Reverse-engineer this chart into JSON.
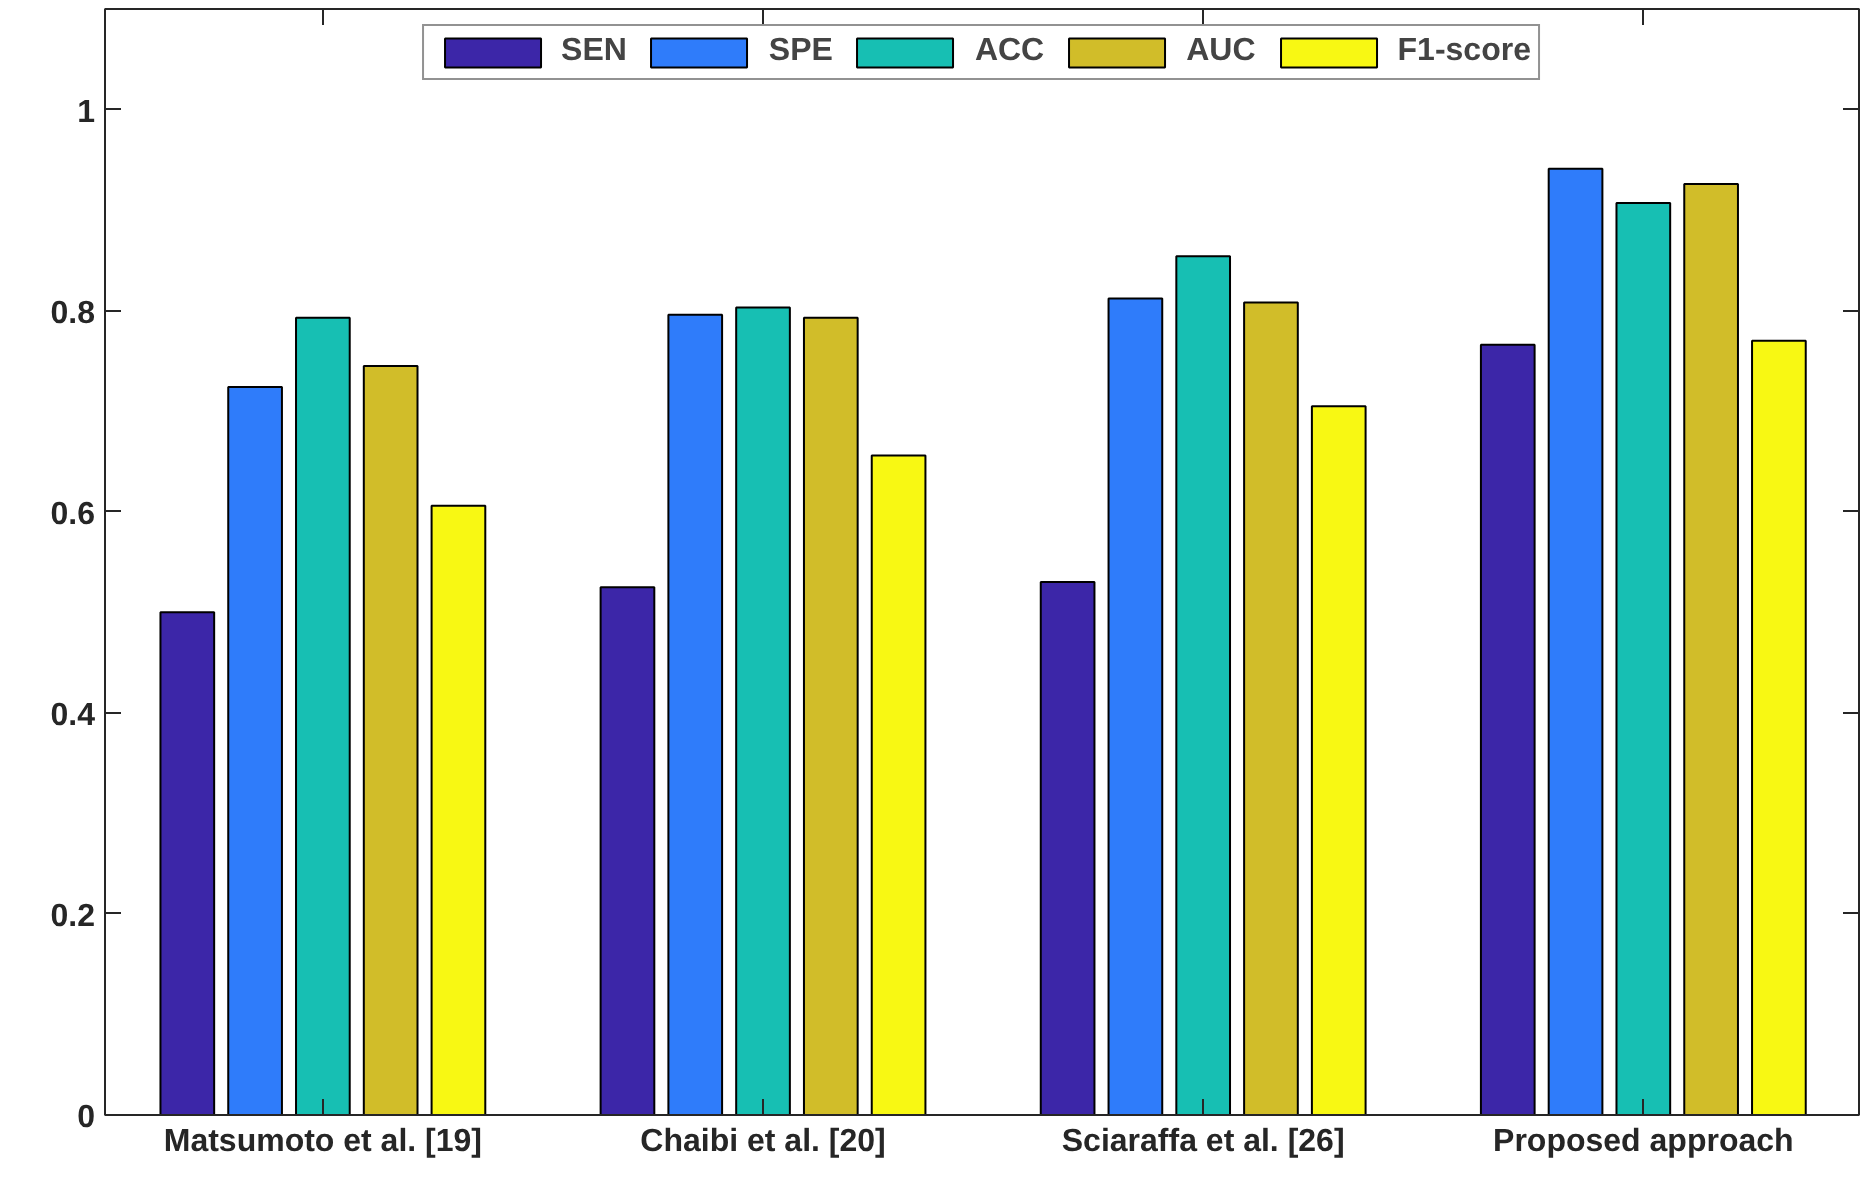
{
  "chart_data": {
    "type": "bar",
    "categories": [
      "Matsumoto et al. [19]",
      "Chaibi et al. [20]",
      "Sciaraffa et al. [26]",
      "Proposed approach"
    ],
    "series": [
      {
        "name": "SEN",
        "color": "#3c26a8",
        "values": [
          0.5,
          0.525,
          0.53,
          0.766
        ]
      },
      {
        "name": "SPE",
        "color": "#2f7cfa",
        "values": [
          0.724,
          0.796,
          0.812,
          0.941
        ]
      },
      {
        "name": "ACC",
        "color": "#17bfb3",
        "values": [
          0.793,
          0.803,
          0.854,
          0.907
        ]
      },
      {
        "name": "AUC",
        "color": "#d1bd29",
        "values": [
          0.745,
          0.793,
          0.808,
          0.926
        ]
      },
      {
        "name": "F1-score",
        "color": "#f8f813",
        "values": [
          0.606,
          0.656,
          0.705,
          0.77
        ]
      }
    ],
    "ylim": [
      0,
      1.1
    ],
    "yticks": [
      0,
      0.2,
      0.4,
      0.6,
      0.8,
      1
    ],
    "grid": false,
    "legend": "top"
  }
}
